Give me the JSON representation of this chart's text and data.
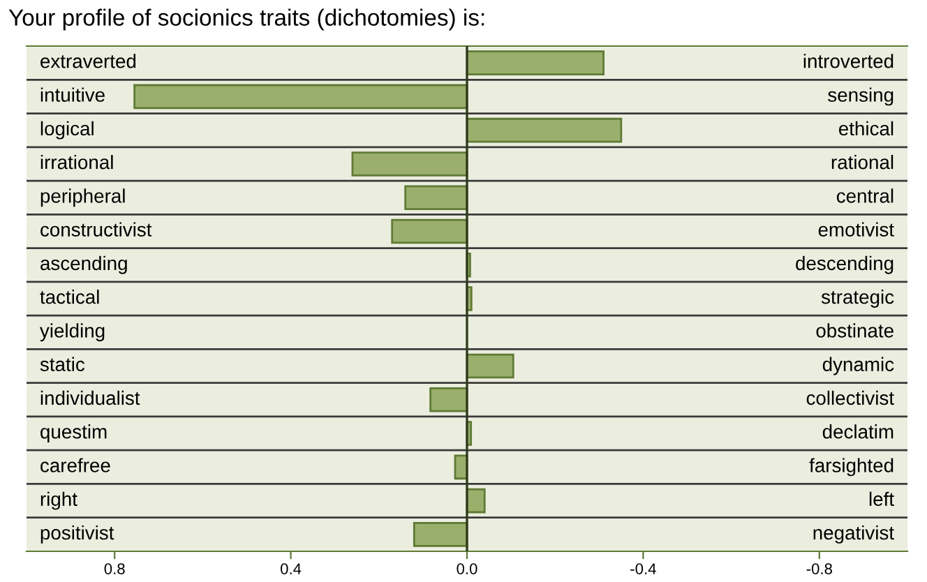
{
  "chart_data": {
    "type": "bar",
    "orientation": "horizontal",
    "title": "Your profile of socionics traits (dichotomies) is:",
    "categories": [
      "extraverted",
      "intuitive",
      "logical",
      "irrational",
      "peripheral",
      "constructivist",
      "ascending",
      "tactical",
      "yielding",
      "static",
      "individualist",
      "questim",
      "carefree",
      "right",
      "positivist"
    ],
    "y2_categories": [
      "introverted",
      "sensing",
      "ethical",
      "rational",
      "central",
      "emotivist",
      "descending",
      "strategic",
      "obstinate",
      "dynamic",
      "collectivist",
      "declatim",
      "farsighted",
      "left",
      "negativist"
    ],
    "values": [
      -0.31,
      0.755,
      -0.35,
      0.26,
      0.14,
      0.17,
      -0.007,
      -0.01,
      null,
      -0.105,
      0.083,
      -0.009,
      0.027,
      -0.04,
      0.12
    ],
    "color": "#9aaf6b",
    "xlim": [
      1.0,
      -1.0
    ],
    "xticks": [
      {
        "value": 0.8,
        "label": "0.8"
      },
      {
        "value": 0.4,
        "label": "0.4"
      },
      {
        "value": 0,
        "label": "0.0"
      },
      {
        "value": -0.4,
        "label": "-0.4"
      },
      {
        "value": -0.8,
        "label": "-0.8"
      }
    ],
    "ref_lines": [
      {
        "axis": "x",
        "value": 0,
        "color": "#2f3a1c"
      }
    ],
    "tick_labels": "x",
    "grid": false
  }
}
